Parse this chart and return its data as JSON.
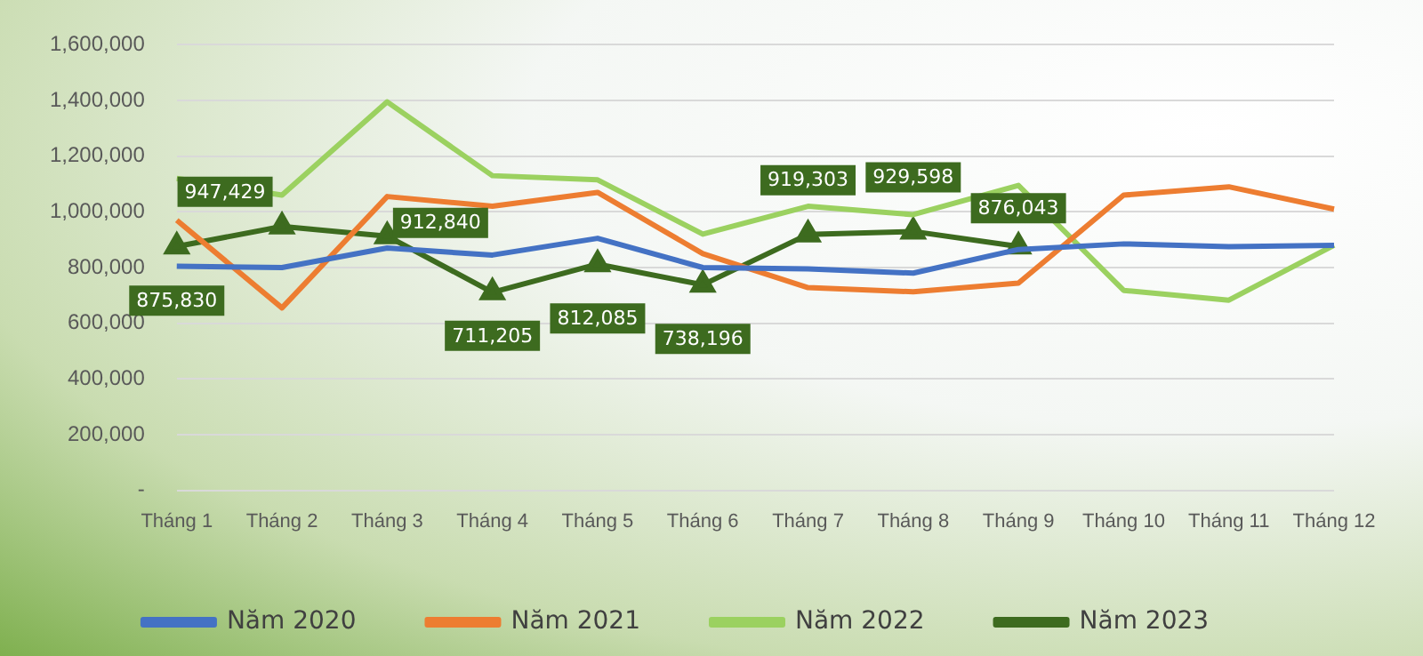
{
  "chart_data": {
    "type": "line",
    "categories": [
      "Tháng 1",
      "Tháng 2",
      "Tháng 3",
      "Tháng 4",
      "Tháng 5",
      "Tháng 6",
      "Tháng 7",
      "Tháng 8",
      "Tháng 9",
      "Tháng 10",
      "Tháng 11",
      "Tháng 12"
    ],
    "series": [
      {
        "name": "Năm 2020",
        "color": "#4472c4",
        "marker": "none",
        "values": [
          805000,
          800000,
          870000,
          845000,
          905000,
          800000,
          795000,
          780000,
          865000,
          885000,
          875000,
          880000
        ]
      },
      {
        "name": "Năm 2021",
        "color": "#ed7d31",
        "marker": "none",
        "values": [
          970000,
          655000,
          1055000,
          1020000,
          1070000,
          850000,
          728000,
          713000,
          744000,
          1060000,
          1090000,
          1010000
        ]
      },
      {
        "name": "Năm 2022",
        "color": "#9bd160",
        "marker": "none",
        "values": [
          1120000,
          1060000,
          1395000,
          1130000,
          1115000,
          920000,
          1020000,
          990000,
          1095000,
          718000,
          683000,
          880000
        ]
      },
      {
        "name": "Năm 2023",
        "color": "#3d6b1f",
        "marker": "triangle",
        "values": [
          875830,
          947429,
          912840,
          711205,
          812085,
          738196,
          919303,
          929598,
          876043,
          null,
          null,
          null
        ],
        "value_labels": [
          "875,830",
          "947,429",
          "912,840",
          "711,205",
          "812,085",
          "738,196",
          "919,303",
          "929,598",
          "876,043",
          null,
          null,
          null
        ]
      }
    ],
    "ylim": [
      0,
      1600000
    ],
    "yticks": [
      {
        "value": 0,
        "label": "-"
      },
      {
        "value": 200000,
        "label": "200,000"
      },
      {
        "value": 400000,
        "label": "400,000"
      },
      {
        "value": 600000,
        "label": "600,000"
      },
      {
        "value": 800000,
        "label": "800,000"
      },
      {
        "value": 1000000,
        "label": "1,000,000"
      },
      {
        "value": 1200000,
        "label": "1,200,000"
      },
      {
        "value": 1400000,
        "label": "1,400,000"
      },
      {
        "value": 1600000,
        "label": "1,600,000"
      }
    ],
    "grid": "y",
    "legend": "bottom",
    "line_style": "solid"
  }
}
